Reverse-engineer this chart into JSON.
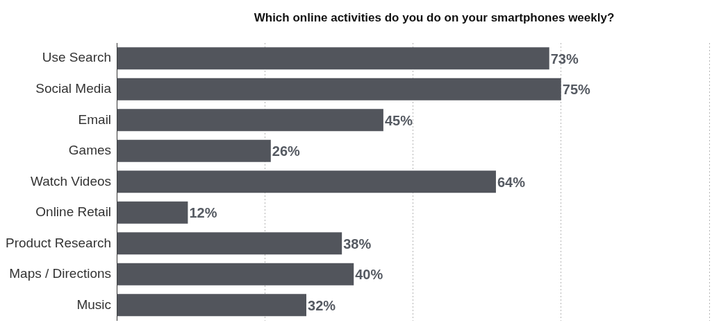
{
  "chart_data": {
    "type": "bar",
    "orientation": "horizontal",
    "title": "Which online activities do you do on your smartphones weekly?",
    "categories": [
      "Use Search",
      "Social Media",
      "Email",
      "Games",
      "Watch Videos",
      "Online Retail",
      "Product Research",
      "Maps / Directions",
      "Music"
    ],
    "values": [
      73,
      75,
      45,
      26,
      64,
      12,
      38,
      40,
      32
    ],
    "value_labels": [
      "73%",
      "75%",
      "45%",
      "26%",
      "64%",
      "12%",
      "38%",
      "40%",
      "32%"
    ],
    "color": "#52555c",
    "xlim": [
      0,
      100
    ],
    "xticks": [
      {
        "value": 0,
        "label": null
      },
      {
        "value": 25,
        "label": null
      },
      {
        "value": 50,
        "label": null
      },
      {
        "value": 75,
        "label": null
      },
      {
        "value": 100,
        "label": null
      }
    ],
    "grid": "x",
    "tick_labels": "y",
    "legend": false
  }
}
